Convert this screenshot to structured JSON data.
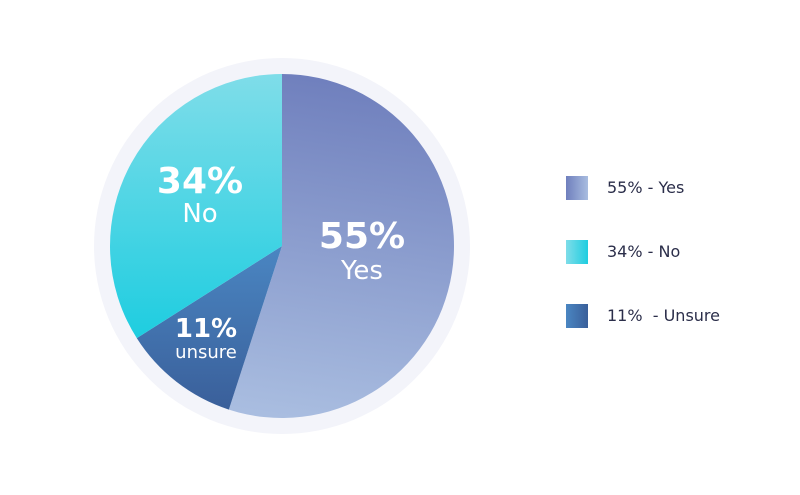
{
  "chart_data": {
    "type": "pie",
    "slices": [
      {
        "value": 55,
        "pct_label": "55%",
        "name_label": "Yes",
        "legend_label": "55% - Yes",
        "color_start": "#6f7fbd",
        "color_end": "#a9bde0"
      },
      {
        "value": 11,
        "pct_label": "11%",
        "name_label": "unsure",
        "legend_label": "11%  - Unsure",
        "color_start": "#4a86c2",
        "color_end": "#3a5f9a"
      },
      {
        "value": 34,
        "pct_label": "34%",
        "name_label": "No",
        "legend_label": "34% - No",
        "color_start": "#7fdde9",
        "color_end": "#1ecde0"
      }
    ],
    "legend_order": [
      0,
      2,
      1
    ],
    "legend_position": "right",
    "ring_color": "#f3f4fa"
  }
}
